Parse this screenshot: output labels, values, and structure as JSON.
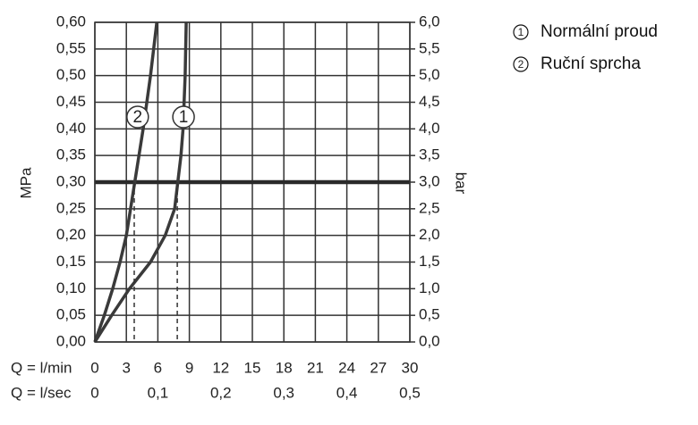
{
  "chart_data": {
    "type": "line",
    "x_label": "Q = l/min",
    "x2_label": "Q = l/sec",
    "y_label": "MPa",
    "y2_label": "bar",
    "xlim": [
      0,
      30
    ],
    "xticks": [
      0,
      3,
      6,
      9,
      12,
      15,
      18,
      21,
      24,
      27,
      30
    ],
    "x2lim": [
      0,
      0.5
    ],
    "x2ticks": [
      0,
      {
        "value": 0.1,
        "label": "0,1"
      },
      {
        "value": 0.2,
        "label": "0,2"
      },
      {
        "value": 0.3,
        "label": "0,3"
      },
      {
        "value": 0.4,
        "label": "0,4"
      },
      {
        "value": 0.5,
        "label": "0,5"
      }
    ],
    "ylim": [
      0,
      0.6
    ],
    "yticks": [
      {
        "value": 0,
        "label": "0,00"
      },
      {
        "value": 0.05,
        "label": "0,05"
      },
      {
        "value": 0.1,
        "label": "0,10"
      },
      {
        "value": 0.15,
        "label": "0,15"
      },
      {
        "value": 0.2,
        "label": "0,20"
      },
      {
        "value": 0.25,
        "label": "0,25"
      },
      {
        "value": 0.3,
        "label": "0,30"
      },
      {
        "value": 0.35,
        "label": "0,35"
      },
      {
        "value": 0.4,
        "label": "0,40"
      },
      {
        "value": 0.45,
        "label": "0,45"
      },
      {
        "value": 0.5,
        "label": "0,50"
      },
      {
        "value": 0.55,
        "label": "0,55"
      },
      {
        "value": 0.6,
        "label": "0,60"
      }
    ],
    "y2lim": [
      0,
      6
    ],
    "y2ticks": [
      {
        "value": 0,
        "label": "0,0"
      },
      {
        "value": 0.5,
        "label": "0,5"
      },
      {
        "value": 1,
        "label": "1,0"
      },
      {
        "value": 1.5,
        "label": "1,5"
      },
      {
        "value": 2,
        "label": "2,0"
      },
      {
        "value": 2.5,
        "label": "2,5"
      },
      {
        "value": 3,
        "label": "3,0"
      },
      {
        "value": 3.5,
        "label": "3,5"
      },
      {
        "value": 4,
        "label": "4,0"
      },
      {
        "value": 4.5,
        "label": "4,5"
      },
      {
        "value": 5,
        "label": "5,0"
      },
      {
        "value": 5.5,
        "label": "5,5"
      },
      {
        "value": 6,
        "label": "6,0"
      }
    ],
    "grid": true,
    "reference_y": 0.3,
    "series": [
      {
        "name": "Normální proud",
        "label": "1",
        "color": "#3a3a3a",
        "operating_x": 7.85,
        "x": [
          0,
          1.6,
          3.3,
          5.3,
          6.7,
          7.6,
          7.9,
          8.2,
          8.4,
          8.6,
          8.7
        ],
        "values": [
          0,
          0.05,
          0.1,
          0.15,
          0.2,
          0.25,
          0.3,
          0.35,
          0.4,
          0.5,
          0.6
        ]
      },
      {
        "name": "Ruční sprcha",
        "label": "2",
        "color": "#3a3a3a",
        "operating_x": 3.75,
        "x": [
          0,
          0.9,
          1.7,
          2.4,
          3.0,
          3.4,
          3.8,
          4.2,
          4.6,
          5.3,
          5.9
        ],
        "values": [
          0,
          0.05,
          0.1,
          0.15,
          0.2,
          0.25,
          0.3,
          0.35,
          0.4,
          0.5,
          0.6
        ]
      }
    ]
  }
}
